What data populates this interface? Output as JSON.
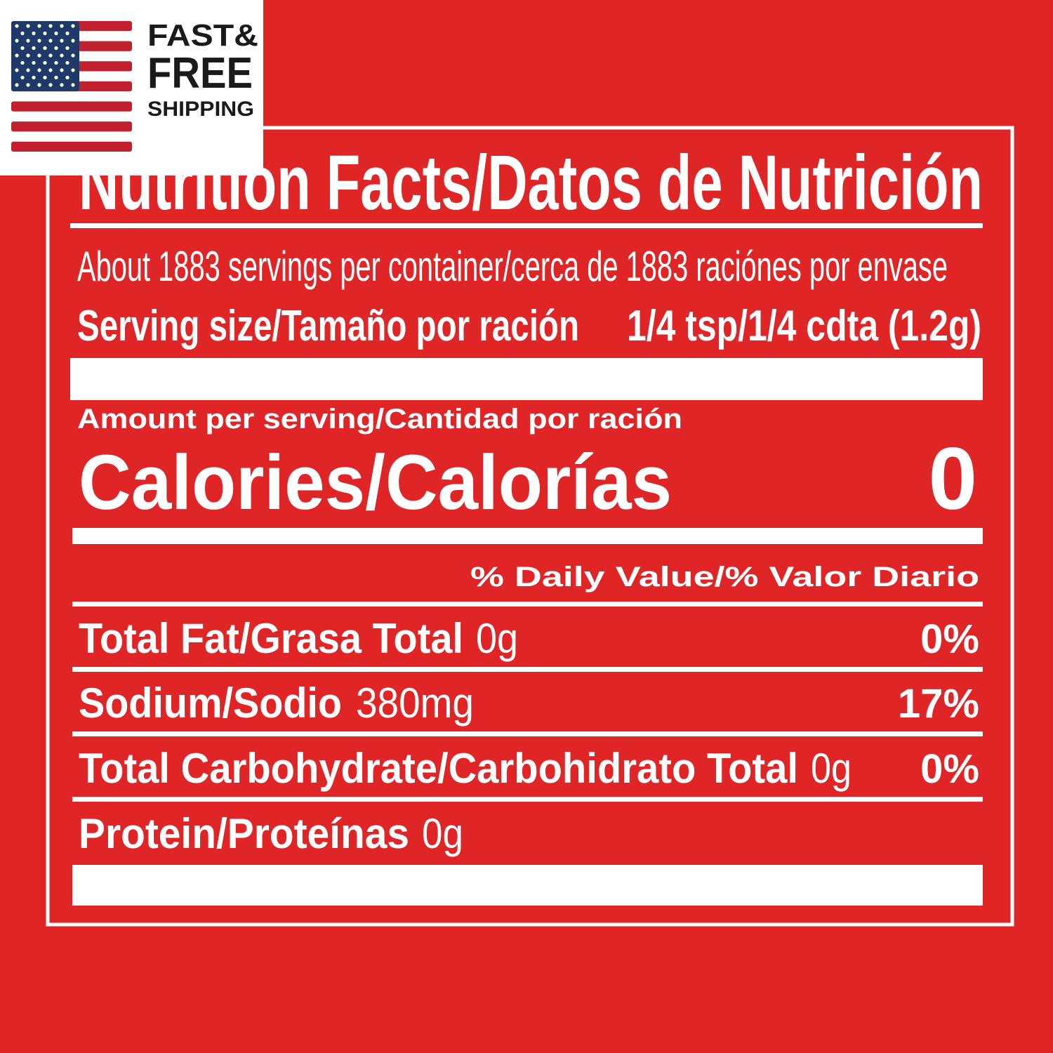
{
  "badge": {
    "line1": "FAST&",
    "line2": "FREE",
    "line3": "SHIPPING"
  },
  "label": {
    "title": "Nutrition Facts/Datos de Nutrición",
    "servings": "About 1883 servings per container/cerca de 1883 raciónes por envase",
    "serving_size_label": "Serving size/Tamaño por ración",
    "serving_size_value": "1/4 tsp/1/4 cdta (1.2g)",
    "amount_per_serving": "Amount per serving/Cantidad por ración",
    "calories_label": "Calories/Calorías",
    "calories_value": "0",
    "daily_value_header": "% Daily Value/% Valor Diario",
    "nutrients": [
      {
        "name": "Total Fat/Grasa Total",
        "amount": "0g",
        "daily_value": "0%"
      },
      {
        "name": "Sodium/Sodio",
        "amount": "380mg",
        "daily_value": "17%"
      },
      {
        "name": "Total Carbohydrate/Carbohidrato Total",
        "amount": "0g",
        "daily_value": "0%"
      },
      {
        "name": "Protein/Proteínas",
        "amount": "0g"
      }
    ]
  }
}
